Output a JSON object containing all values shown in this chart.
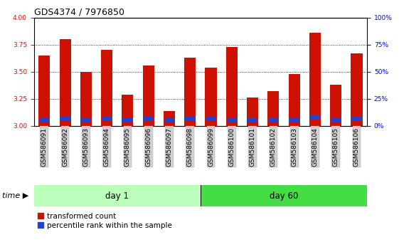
{
  "title": "GDS4374 / 7976850",
  "samples": [
    "GSM586091",
    "GSM586092",
    "GSM586093",
    "GSM586094",
    "GSM586095",
    "GSM586096",
    "GSM586097",
    "GSM586098",
    "GSM586099",
    "GSM586100",
    "GSM586101",
    "GSM586102",
    "GSM586103",
    "GSM586104",
    "GSM586105",
    "GSM586106"
  ],
  "red_values": [
    3.65,
    3.8,
    3.5,
    3.7,
    3.29,
    3.56,
    3.14,
    3.63,
    3.54,
    3.73,
    3.26,
    3.32,
    3.48,
    3.86,
    3.38,
    3.67
  ],
  "blue_top": [
    3.08,
    3.09,
    3.07,
    3.09,
    3.07,
    3.09,
    3.07,
    3.09,
    3.09,
    3.08,
    3.07,
    3.07,
    3.08,
    3.1,
    3.07,
    3.09
  ],
  "blue_bottom": [
    3.04,
    3.05,
    3.03,
    3.05,
    3.03,
    3.05,
    3.03,
    3.05,
    3.05,
    3.04,
    3.03,
    3.03,
    3.04,
    3.06,
    3.03,
    3.05
  ],
  "ymin": 3.0,
  "ymax": 4.0,
  "yticks_left": [
    3.0,
    3.25,
    3.5,
    3.75,
    4.0
  ],
  "yticks_right": [
    0,
    25,
    50,
    75,
    100
  ],
  "ytick_labels_right": [
    "0%",
    "25%",
    "50%",
    "75%",
    "100%"
  ],
  "bar_color_red": "#cc1100",
  "bar_color_blue": "#2244cc",
  "bar_width": 0.55,
  "day1_samples": 8,
  "day60_samples": 8,
  "day1_label": "day 1",
  "day60_label": "day 60",
  "time_label": "time",
  "legend_red": "transformed count",
  "legend_blue": "percentile rank within the sample",
  "bg_plot": "#ffffff",
  "bg_ticklabel": "#d0d0d0",
  "bg_day1": "#bbffbb",
  "bg_day60": "#44dd44",
  "title_fontsize": 9,
  "tick_fontsize": 6.5,
  "legend_fontsize": 7.5
}
